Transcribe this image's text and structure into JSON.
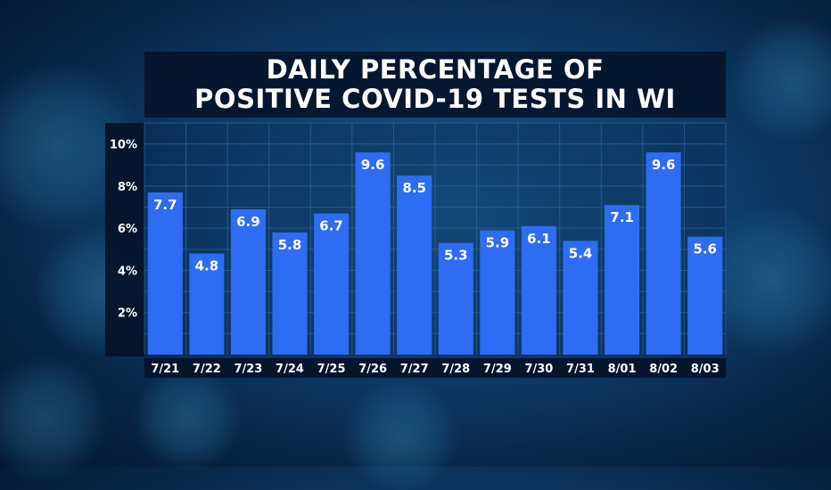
{
  "chart_data": {
    "type": "bar",
    "title_lines": [
      "DAILY PERCENTAGE OF",
      "POSITIVE COVID-19 TESTS IN WI"
    ],
    "categories": [
      "7/21",
      "7/22",
      "7/23",
      "7/24",
      "7/25",
      "7/26",
      "7/27",
      "7/28",
      "7/29",
      "7/30",
      "7/31",
      "8/01",
      "8/02",
      "8/03"
    ],
    "values": [
      7.7,
      4.8,
      6.9,
      5.8,
      6.7,
      9.6,
      8.5,
      5.3,
      5.9,
      6.1,
      5.4,
      7.1,
      9.6,
      5.6
    ],
    "data_labels": [
      "7.7",
      "4.8",
      "6.9",
      "5.8",
      "6.7",
      "9.6",
      "8.5",
      "5.3",
      "5.9",
      "6.1",
      "5.4",
      "7.1",
      "9.6",
      "5.6"
    ],
    "y_ticks": [
      2,
      4,
      6,
      8,
      10
    ],
    "y_tick_labels": [
      "2%",
      "4%",
      "6%",
      "8%",
      "10%"
    ],
    "ylim": [
      0,
      11
    ],
    "grid": true,
    "bar_color": "#2f6cf4",
    "grid_color": "#2b6a9a"
  }
}
